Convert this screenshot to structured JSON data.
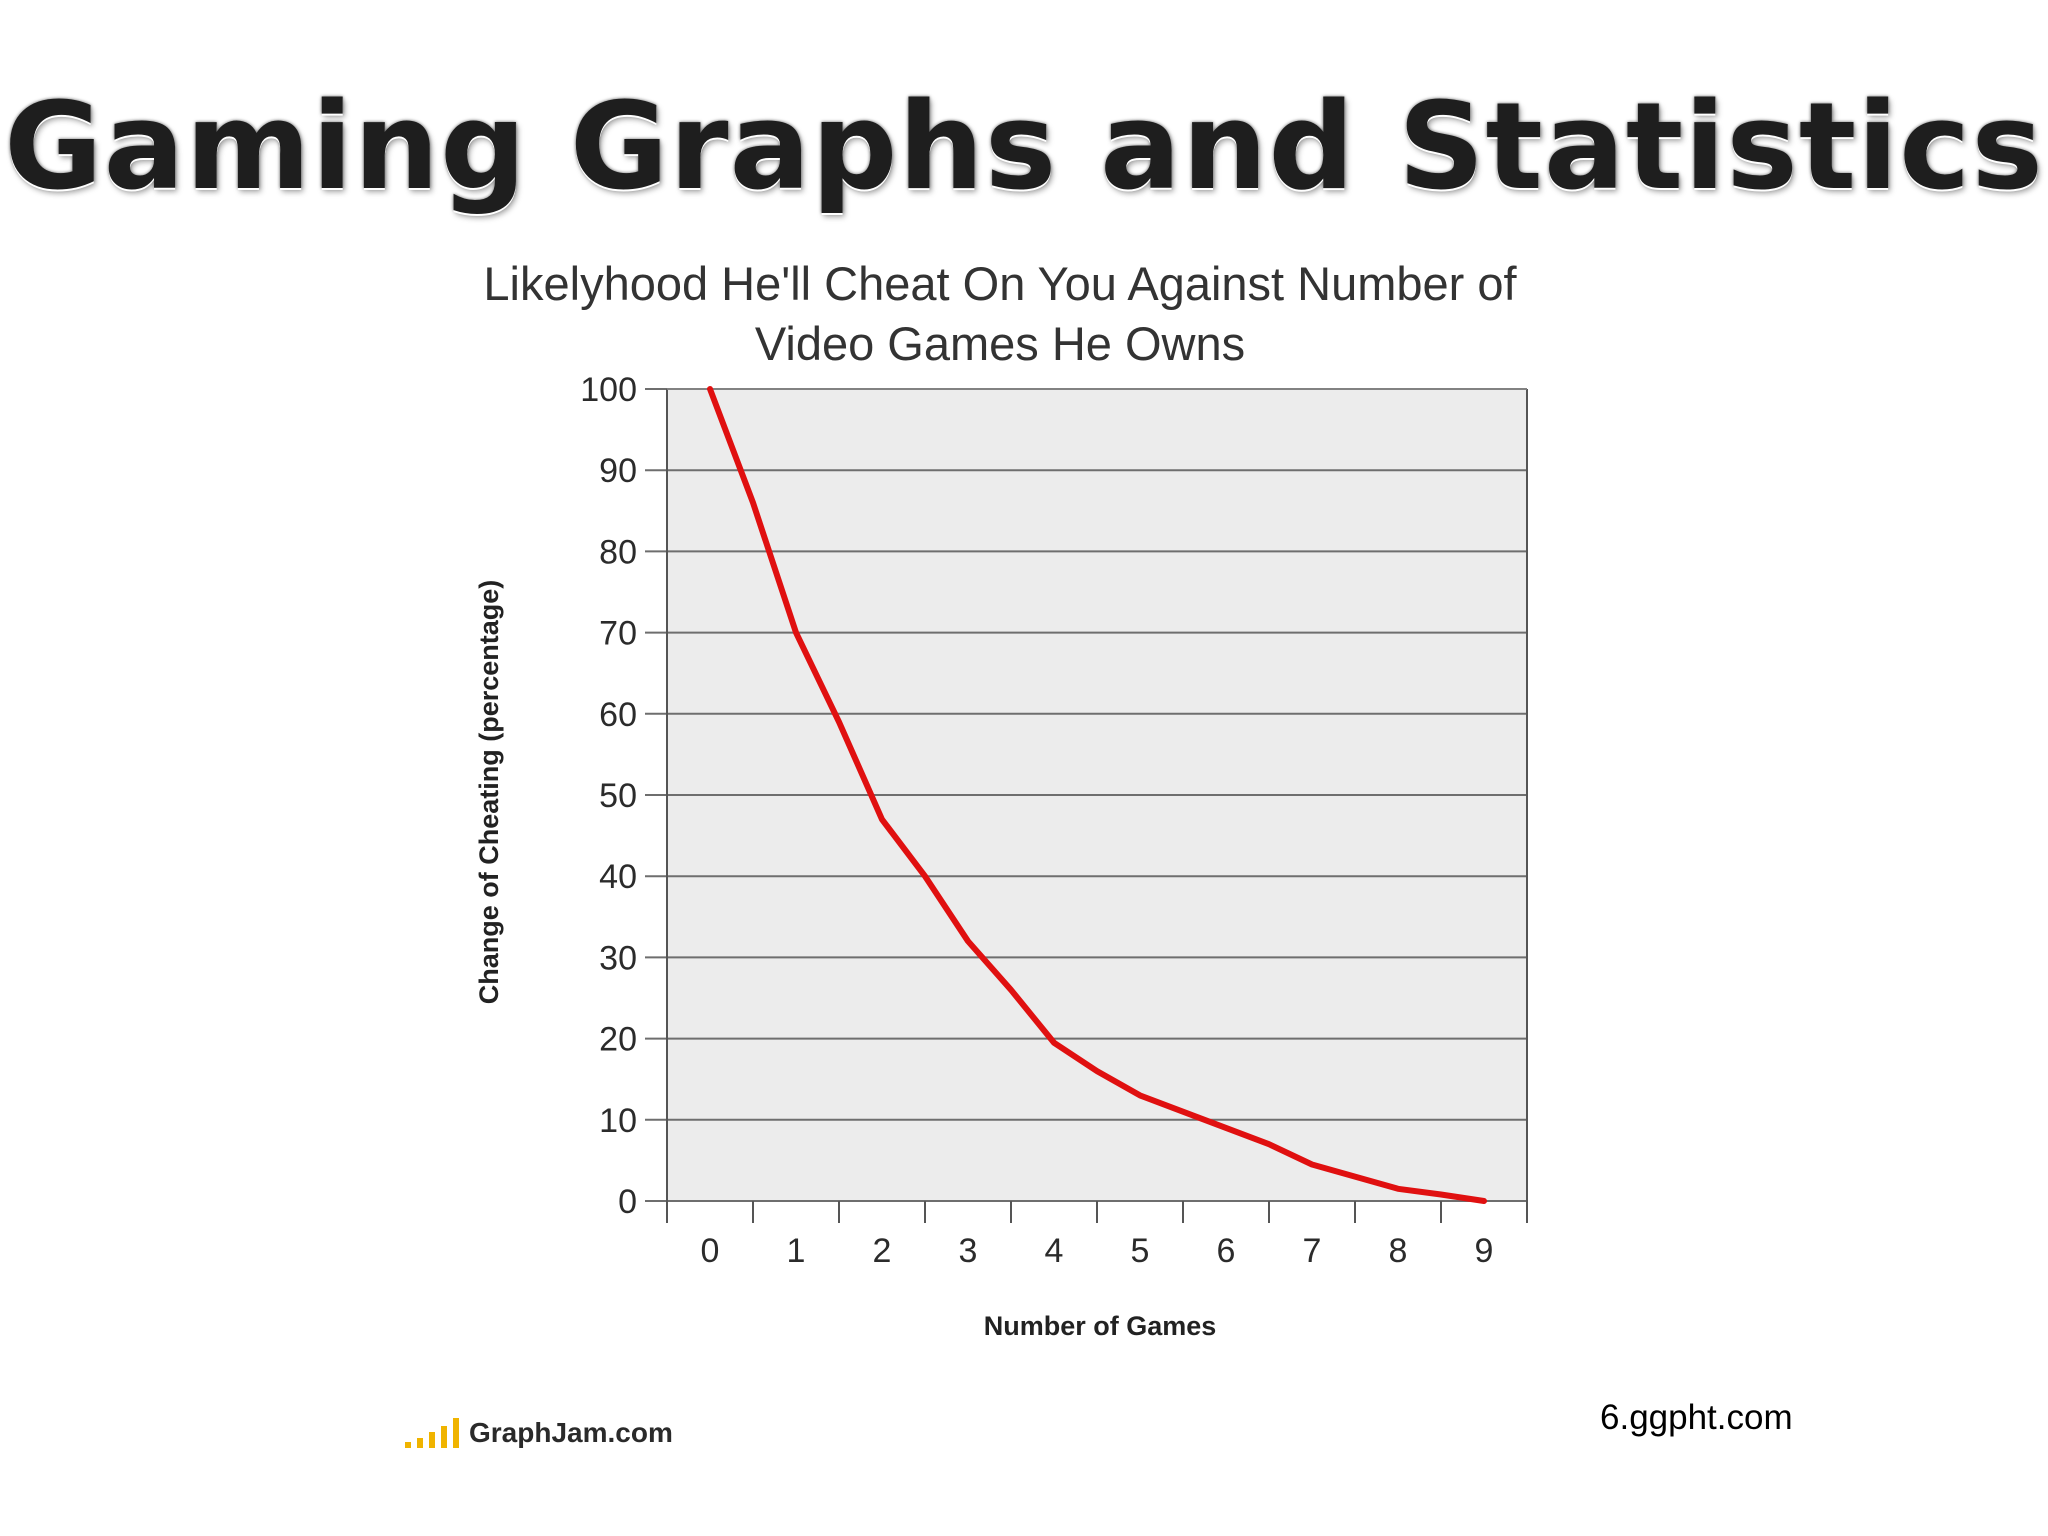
{
  "slide": {
    "title": "Gaming Graphs and Statistics",
    "logo_text": "GraphJam.com",
    "source_credit": "6.ggpht.com"
  },
  "colors": {
    "line": "#e01010",
    "plot_background": "#ececec",
    "grid": "#6e6e6e"
  },
  "chart_data": {
    "type": "line",
    "title_lines": [
      "Likelyhood He'll Cheat On You Against Number of",
      "Video Games He Owns"
    ],
    "xlabel": "Number of Games",
    "ylabel": "Change of Cheating (percentage)",
    "x_ticks": [
      "0",
      "1",
      "2",
      "3",
      "4",
      "5",
      "6",
      "7",
      "8",
      "9"
    ],
    "y_ticks": [
      "0",
      "10",
      "20",
      "30",
      "40",
      "50",
      "60",
      "70",
      "80",
      "90",
      "100"
    ],
    "xlim": [
      -0.5,
      9.5
    ],
    "ylim": [
      0,
      100
    ],
    "grid": true,
    "legend": "none",
    "series": [
      {
        "x": [
          0,
          0.5,
          1,
          1.5,
          2,
          2.5,
          3,
          3.5,
          4,
          4.5,
          5,
          5.5,
          6,
          6.5,
          7,
          7.5,
          8,
          8.5,
          9
        ],
        "values": [
          100,
          86,
          70,
          59,
          47,
          40,
          32,
          26,
          19.5,
          16,
          13,
          11,
          9,
          7,
          4.5,
          3,
          1.5,
          0.8,
          0
        ]
      }
    ]
  }
}
